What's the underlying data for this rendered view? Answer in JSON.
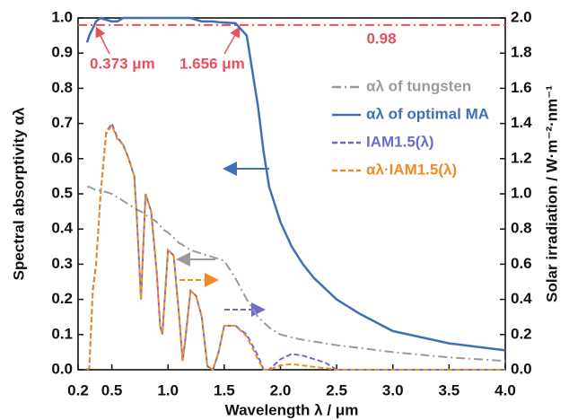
{
  "chart_data": {
    "type": "line",
    "x_label": "Wavelength λ / μm",
    "y_label": "Spectral absorptivity αλ",
    "y2_label": "Solar irradiation / W·m⁻²·nm⁻¹",
    "xlim": [
      0.2,
      4.0
    ],
    "xticks": [
      0.2,
      0.5,
      {
        "value": 1.0,
        "label": "1.0"
      },
      1.5,
      {
        "value": 2.0,
        "label": "2.0"
      },
      2.5,
      {
        "value": 3.0,
        "label": "3.0"
      },
      3.5,
      {
        "value": 4.0,
        "label": "4.0"
      }
    ],
    "ylim": [
      0,
      1.0
    ],
    "yticks": [
      {
        "value": 0,
        "label": "0.0"
      },
      0.1,
      0.2,
      0.3,
      0.4,
      0.5,
      0.6,
      0.7,
      0.8,
      0.9,
      {
        "value": 1.0,
        "label": "1.0"
      }
    ],
    "y2lim": [
      0,
      2.0
    ],
    "y2ticks": [
      {
        "value": 0,
        "label": "0.0"
      },
      0.2,
      0.4,
      0.6,
      0.8,
      {
        "value": 1.0,
        "label": "1.0"
      },
      1.2,
      1.4,
      1.6,
      1.8,
      {
        "value": 2.0,
        "label": "2.0"
      }
    ],
    "x": [
      0.28,
      0.3,
      0.33,
      0.36,
      0.4,
      0.45,
      0.5,
      0.55,
      0.6,
      0.65,
      0.7,
      0.72,
      0.76,
      0.8,
      0.85,
      0.9,
      0.93,
      0.95,
      1.0,
      1.05,
      1.1,
      1.13,
      1.15,
      1.2,
      1.25,
      1.3,
      1.35,
      1.4,
      1.45,
      1.5,
      1.6,
      1.7,
      1.8,
      1.85,
      1.9,
      2.0,
      2.1,
      2.2,
      2.3,
      2.4,
      2.5,
      2.7,
      3.0,
      3.5,
      4.0
    ],
    "series": [
      {
        "name": "αλ of tungsten",
        "color": "#9a9a9a",
        "dash": "10 4 2 4",
        "axis": "y",
        "values": [
          0.52,
          0.52,
          0.515,
          0.51,
          0.51,
          0.505,
          0.5,
          0.49,
          0.48,
          0.47,
          0.46,
          0.455,
          0.45,
          0.44,
          0.43,
          0.42,
          0.41,
          0.4,
          0.39,
          0.375,
          0.36,
          0.355,
          0.35,
          0.34,
          0.335,
          0.33,
          0.325,
          0.32,
          0.315,
          0.31,
          0.26,
          0.2,
          0.15,
          0.135,
          0.12,
          0.1,
          0.092,
          0.085,
          0.08,
          0.075,
          0.07,
          0.062,
          0.05,
          0.035,
          0.025
        ]
      },
      {
        "name": "αλ of optimal MA",
        "color": "#3f6fb5",
        "dash": "",
        "axis": "y",
        "values": [
          0.93,
          0.95,
          0.97,
          0.99,
          1.0,
          0.995,
          0.99,
          0.99,
          1.0,
          1.0,
          1.0,
          1.0,
          1.0,
          1.0,
          1.0,
          1.0,
          1.0,
          1.0,
          1.0,
          1.0,
          1.0,
          1.0,
          1.0,
          1.0,
          0.995,
          0.99,
          0.99,
          0.99,
          0.988,
          0.987,
          0.985,
          0.95,
          0.75,
          0.62,
          0.52,
          0.42,
          0.35,
          0.3,
          0.26,
          0.23,
          0.2,
          0.16,
          0.11,
          0.075,
          0.055
        ]
      },
      {
        "name": "IAM1.5(λ)",
        "color": "#6b6bc9",
        "dash": "6 3",
        "axis": "y2",
        "values": [
          0,
          0.01,
          0.45,
          0.6,
          1.0,
          1.35,
          1.4,
          1.32,
          1.28,
          1.2,
          1.1,
          0.9,
          0.4,
          1.0,
          0.9,
          0.55,
          0.25,
          0.2,
          0.68,
          0.65,
          0.3,
          0.05,
          0.15,
          0.45,
          0.42,
          0.3,
          0.02,
          0,
          0.1,
          0.25,
          0.25,
          0.2,
          0.08,
          0,
          0,
          0.06,
          0.09,
          0.08,
          0.06,
          0.04,
          0,
          0,
          0,
          0,
          0
        ]
      },
      {
        "name": "αλ·IAM1.5(λ)",
        "color": "#f08a24",
        "dash": "6 3",
        "axis": "y2",
        "values": [
          0,
          0.01,
          0.44,
          0.59,
          1.0,
          1.34,
          1.39,
          1.31,
          1.28,
          1.2,
          1.1,
          0.9,
          0.4,
          1.0,
          0.9,
          0.55,
          0.25,
          0.2,
          0.68,
          0.65,
          0.3,
          0.05,
          0.15,
          0.45,
          0.42,
          0.3,
          0.02,
          0,
          0.1,
          0.25,
          0.25,
          0.19,
          0.06,
          0,
          0,
          0.025,
          0.032,
          0.024,
          0.016,
          0.009,
          0,
          0,
          0,
          0,
          0
        ]
      }
    ],
    "reference_line": {
      "value": 0.98,
      "label": "0.98",
      "color": "#e8505b"
    },
    "annotations": [
      "0.373 μm",
      "1.656 μm"
    ]
  }
}
